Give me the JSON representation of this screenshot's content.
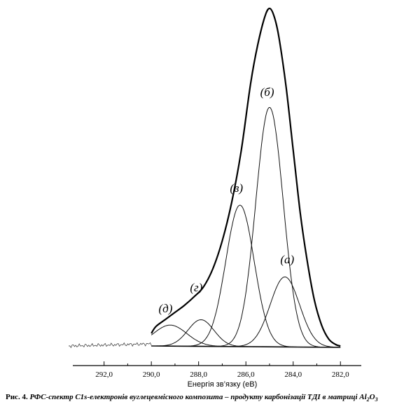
{
  "chart_data": {
    "type": "line",
    "xlabel": "Енергія зв’язку (еВ)",
    "x_axis_reversed": true,
    "xlim": [
      293.5,
      281.0
    ],
    "x_ticks": [
      292.0,
      290.0,
      288.0,
      286.0,
      284.0,
      282.0
    ],
    "x_tick_labels": [
      "292,0",
      "290,0",
      "288,0",
      "286,0",
      "284,0",
      "282,0"
    ],
    "y_axis_visible": false,
    "grid": false,
    "baseline": {
      "start_x": 290.0,
      "end_x": 282.0,
      "start_y": 0,
      "end_y": -2
    },
    "noise": {
      "x_start": 293.5,
      "x_end": 290.0
    },
    "peaks": [
      {
        "label": "(а)",
        "center": 284.35,
        "amplitude": 100,
        "sigma": 0.62
      },
      {
        "label": "(б)",
        "center": 285.0,
        "amplitude": 342,
        "sigma": 0.58
      },
      {
        "label": "(в)",
        "center": 286.25,
        "amplitude": 202,
        "sigma": 0.6
      },
      {
        "label": "(г)",
        "center": 287.9,
        "amplitude": 38,
        "sigma": 0.55
      },
      {
        "label": "(д)",
        "center": 289.2,
        "amplitude": 30,
        "sigma": 0.7
      }
    ],
    "envelope": {
      "x": [
        290.0,
        289.8,
        289.4,
        289.0,
        288.6,
        288.2,
        287.8,
        287.4,
        287.0,
        286.6,
        286.2,
        285.8,
        285.5,
        285.2,
        285.0,
        284.8,
        284.6,
        284.3,
        284.0,
        283.7,
        283.4,
        283.1,
        282.8,
        282.5,
        282.2,
        282.0
      ],
      "y": [
        18,
        28,
        38,
        48,
        58,
        70,
        84,
        110,
        150,
        205,
        278,
        375,
        430,
        470,
        482,
        470,
        440,
        370,
        280,
        190,
        120,
        65,
        30,
        10,
        2,
        0
      ]
    },
    "peak_label_positions": [
      {
        "label": "(а)",
        "x": 284.25,
        "y": 118
      },
      {
        "label": "(б)",
        "x": 285.1,
        "y": 357
      },
      {
        "label": "(в)",
        "x": 286.4,
        "y": 220
      },
      {
        "label": "(г)",
        "x": 288.1,
        "y": 78
      },
      {
        "label": "(д)",
        "x": 289.4,
        "y": 48
      }
    ]
  },
  "caption": {
    "prefix": "Рис. 4.",
    "text": "РФС-спектр C1s-електронів вуглецевмісного композита – продукту карбонізації ТДІ в матриці Al",
    "sub1": "2",
    "mid": "O",
    "sub2": "3"
  }
}
